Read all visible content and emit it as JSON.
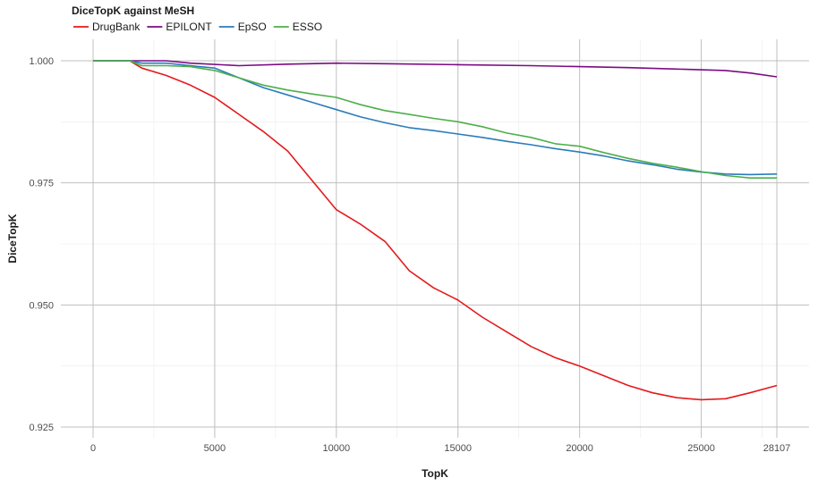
{
  "chart_data": {
    "type": "line",
    "title": "",
    "legend_title": "DiceTopK against MeSH",
    "legend_position": "top-left",
    "xlabel": "TopK",
    "ylabel": "DiceTopK",
    "xlim": [
      0,
      28107
    ],
    "ylim": [
      0.925,
      1.0
    ],
    "x_ticks": [
      0,
      5000,
      10000,
      15000,
      20000,
      25000,
      28107
    ],
    "x_tick_labels": [
      "0",
      "5000",
      "10000",
      "15000",
      "20000",
      "25000",
      "28107"
    ],
    "y_ticks": [
      0.925,
      0.95,
      0.975,
      1.0
    ],
    "y_tick_labels": [
      "0.925",
      "0.950",
      "0.975",
      "1.000"
    ],
    "grid": true,
    "series": [
      {
        "name": "DrugBank",
        "color": "#E41A1C",
        "points": [
          [
            0,
            1.0
          ],
          [
            1500,
            1.0
          ],
          [
            2000,
            0.9985
          ],
          [
            3000,
            0.997
          ],
          [
            4000,
            0.995
          ],
          [
            5000,
            0.9925
          ],
          [
            6000,
            0.989
          ],
          [
            7000,
            0.9855
          ],
          [
            8000,
            0.9815
          ],
          [
            9000,
            0.9755
          ],
          [
            10000,
            0.9695
          ],
          [
            11000,
            0.9665
          ],
          [
            12000,
            0.963
          ],
          [
            13000,
            0.957
          ],
          [
            14000,
            0.9535
          ],
          [
            15000,
            0.951
          ],
          [
            16000,
            0.9475
          ],
          [
            17000,
            0.9445
          ],
          [
            18000,
            0.9415
          ],
          [
            19000,
            0.9392
          ],
          [
            20000,
            0.9375
          ],
          [
            21000,
            0.9355
          ],
          [
            22000,
            0.9335
          ],
          [
            23000,
            0.932
          ],
          [
            24000,
            0.931
          ],
          [
            25000,
            0.9306
          ],
          [
            26000,
            0.9308
          ],
          [
            27000,
            0.932
          ],
          [
            28107,
            0.9335
          ]
        ]
      },
      {
        "name": "EPILONT",
        "color": "#7B0A82",
        "points": [
          [
            0,
            1.0
          ],
          [
            3000,
            1.0
          ],
          [
            4000,
            0.9995
          ],
          [
            6000,
            0.999
          ],
          [
            8000,
            0.9993
          ],
          [
            10000,
            0.9995
          ],
          [
            12000,
            0.9994
          ],
          [
            15000,
            0.9992
          ],
          [
            18000,
            0.999
          ],
          [
            20000,
            0.9988
          ],
          [
            22000,
            0.9986
          ],
          [
            24000,
            0.9983
          ],
          [
            26000,
            0.998
          ],
          [
            27000,
            0.9975
          ],
          [
            28107,
            0.9967
          ]
        ]
      },
      {
        "name": "EpSO",
        "color": "#2B7BBA",
        "points": [
          [
            0,
            1.0
          ],
          [
            1500,
            1.0
          ],
          [
            2000,
            0.9995
          ],
          [
            3000,
            0.9995
          ],
          [
            4000,
            0.999
          ],
          [
            5000,
            0.9985
          ],
          [
            6000,
            0.9965
          ],
          [
            7000,
            0.9945
          ],
          [
            8000,
            0.993
          ],
          [
            9000,
            0.9915
          ],
          [
            10000,
            0.99
          ],
          [
            11000,
            0.9885
          ],
          [
            12000,
            0.9873
          ],
          [
            13000,
            0.9863
          ],
          [
            14000,
            0.9857
          ],
          [
            15000,
            0.985
          ],
          [
            16000,
            0.9843
          ],
          [
            17000,
            0.9835
          ],
          [
            18000,
            0.9828
          ],
          [
            19000,
            0.982
          ],
          [
            20000,
            0.9813
          ],
          [
            21000,
            0.9805
          ],
          [
            22000,
            0.9795
          ],
          [
            23000,
            0.9787
          ],
          [
            24000,
            0.9778
          ],
          [
            25000,
            0.9772
          ],
          [
            26000,
            0.9768
          ],
          [
            27000,
            0.9767
          ],
          [
            28107,
            0.9768
          ]
        ]
      },
      {
        "name": "ESSO",
        "color": "#4DAF4A",
        "points": [
          [
            0,
            1.0
          ],
          [
            1500,
            1.0
          ],
          [
            2000,
            0.999
          ],
          [
            3000,
            0.999
          ],
          [
            4000,
            0.9988
          ],
          [
            5000,
            0.998
          ],
          [
            6000,
            0.9965
          ],
          [
            7000,
            0.995
          ],
          [
            8000,
            0.994
          ],
          [
            9000,
            0.9932
          ],
          [
            10000,
            0.9925
          ],
          [
            11000,
            0.991
          ],
          [
            12000,
            0.9898
          ],
          [
            13000,
            0.989
          ],
          [
            14000,
            0.9882
          ],
          [
            15000,
            0.9875
          ],
          [
            16000,
            0.9865
          ],
          [
            17000,
            0.9852
          ],
          [
            18000,
            0.9843
          ],
          [
            19000,
            0.983
          ],
          [
            20000,
            0.9825
          ],
          [
            21000,
            0.9812
          ],
          [
            22000,
            0.98
          ],
          [
            23000,
            0.979
          ],
          [
            24000,
            0.9782
          ],
          [
            25000,
            0.9773
          ],
          [
            26000,
            0.9765
          ],
          [
            27000,
            0.976
          ],
          [
            28107,
            0.976
          ]
        ]
      }
    ]
  }
}
